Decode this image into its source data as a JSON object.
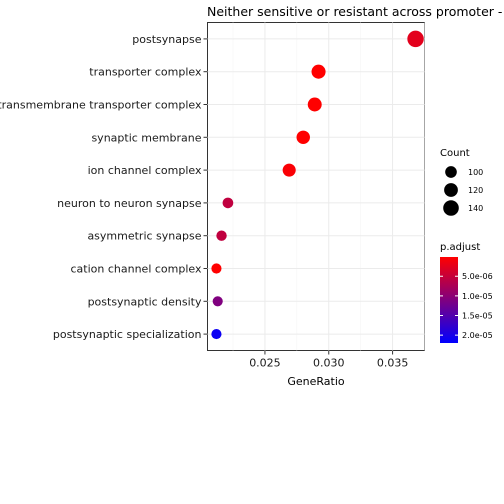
{
  "chart_data": {
    "type": "scatter",
    "title": "Neither sensitive or resistant across promoter - CC",
    "xlabel": "GeneRatio",
    "ylabel": "",
    "xlim": [
      0.0205,
      0.0375
    ],
    "xticks": [
      0.025,
      0.03,
      0.035
    ],
    "xtick_labels": [
      "0.025",
      "0.030",
      "0.035"
    ],
    "grid": true,
    "categories": [
      "postsynapse",
      "transporter complex",
      "transmembrane transporter complex",
      "synaptic membrane",
      "ion channel complex",
      "neuron to neuron synapse",
      "asymmetric synapse",
      "cation channel complex",
      "postsynaptic density",
      "postsynaptic specialization"
    ],
    "points": [
      {
        "term": "postsynapse",
        "gene_ratio": 0.0368,
        "count": 150,
        "p_adjust": 2.5e-06
      },
      {
        "term": "transporter complex",
        "gene_ratio": 0.0292,
        "count": 123,
        "p_adjust": 1e-07
      },
      {
        "term": "transmembrane transporter complex",
        "gene_ratio": 0.0289,
        "count": 122,
        "p_adjust": 1e-07
      },
      {
        "term": "synaptic membrane",
        "gene_ratio": 0.028,
        "count": 117,
        "p_adjust": 1e-07
      },
      {
        "term": "ion channel complex",
        "gene_ratio": 0.0269,
        "count": 113,
        "p_adjust": 5e-07
      },
      {
        "term": "neuron to neuron synapse",
        "gene_ratio": 0.0221,
        "count": 92,
        "p_adjust": 5.5e-06
      },
      {
        "term": "asymmetric synapse",
        "gene_ratio": 0.0216,
        "count": 90,
        "p_adjust": 5.5e-06
      },
      {
        "term": "cation channel complex",
        "gene_ratio": 0.0212,
        "count": 88,
        "p_adjust": 1e-07
      },
      {
        "term": "postsynaptic density",
        "gene_ratio": 0.0213,
        "count": 88,
        "p_adjust": 1.1e-05
      },
      {
        "term": "postsynaptic specialization",
        "gene_ratio": 0.0212,
        "count": 88,
        "p_adjust": 2.1e-05
      }
    ],
    "legend_count": {
      "title": "Count",
      "placement": "right",
      "entries": [
        {
          "label": "100",
          "value": 100
        },
        {
          "label": "120",
          "value": 120
        },
        {
          "label": "140",
          "value": 140
        }
      ]
    },
    "legend_padjust": {
      "title": "p.adjust",
      "placement": "right",
      "range": [
        1e-07,
        2.2e-05
      ],
      "low_color": "#ff0000",
      "high_color": "#0000ff",
      "ticks": [
        {
          "label": "5.0e-06",
          "value": 5e-06
        },
        {
          "label": "1.0e-05",
          "value": 1e-05
        },
        {
          "label": "1.5e-05",
          "value": 1.5e-05
        },
        {
          "label": "2.0e-05",
          "value": 2e-05
        }
      ]
    }
  }
}
